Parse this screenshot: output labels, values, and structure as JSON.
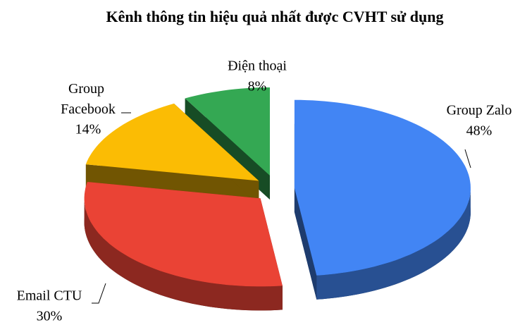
{
  "chart_data": {
    "type": "pie3d",
    "title": "Kênh thông tin hiệu quả nhất được CVHT  sử dụng",
    "categories": [
      "Group Zalo",
      "Email CTU",
      "Group Facebook",
      "Điện thoại"
    ],
    "values": [
      48,
      30,
      14,
      8
    ],
    "value_labels": [
      "48%",
      "30%",
      "14%",
      "8%"
    ],
    "colors": [
      "#4285f4",
      "#ea4335",
      "#fbbc04",
      "#34a853"
    ]
  }
}
